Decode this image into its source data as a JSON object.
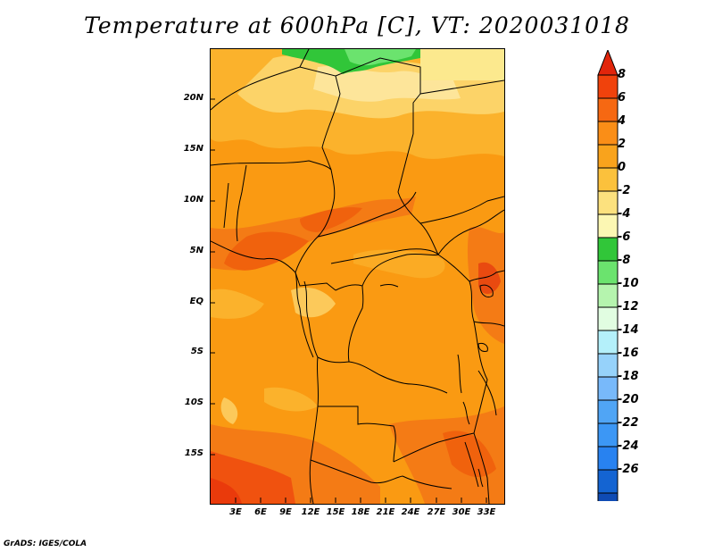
{
  "title": "Temperature at 600hPa [C], VT: 2020031018",
  "footer": "GrADS: IGES/COLA",
  "map": {
    "variable": "Temperature",
    "level": "600hPa",
    "units": "C",
    "valid_time": "2020031018",
    "lon_labels": [
      "3E",
      "6E",
      "9E",
      "12E",
      "15E",
      "18E",
      "21E",
      "24E",
      "27E",
      "30E",
      "33E"
    ],
    "lat_labels": [
      "20N",
      "15N",
      "10N",
      "5N",
      "EQ",
      "5S",
      "10S",
      "15S"
    ],
    "lon_range": [
      0,
      35
    ],
    "lat_range": [
      -20,
      25
    ]
  },
  "colorbar": {
    "labels": [
      "8",
      "6",
      "4",
      "2",
      "0",
      "-2",
      "-4",
      "-6",
      "-8",
      "-10",
      "-12",
      "-14",
      "-16",
      "-18",
      "-20",
      "-22",
      "-24",
      "-26"
    ],
    "colors": [
      "#e1250b",
      "#f0420c",
      "#f66812",
      "#fa8e17",
      "#f9a31c",
      "#fbc13c",
      "#fce17e",
      "#fcf7b3",
      "#31c639",
      "#6be36e",
      "#b5f4ae",
      "#e1fde1",
      "#b4f0fa",
      "#96d2fa",
      "#78b9fa",
      "#50a5f5",
      "#3c97f5",
      "#2882f0",
      "#1464d2",
      "#0f4bb4",
      "#00287c",
      "#e0e0f8"
    ]
  }
}
